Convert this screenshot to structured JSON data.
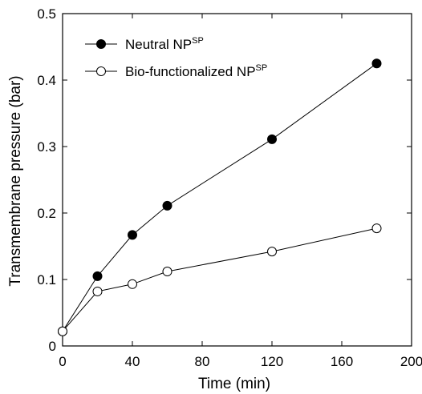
{
  "chart_data": {
    "type": "line",
    "xlabel": "Time (min)",
    "ylabel": "Transmembrane pressure (bar)",
    "xlim": [
      0,
      200
    ],
    "ylim": [
      0,
      0.5
    ],
    "xticks": [
      0,
      40,
      80,
      120,
      160,
      200
    ],
    "yticks": [
      0,
      0.1,
      0.2,
      0.3,
      0.4,
      0.5
    ],
    "xtick_labels": [
      "0",
      "40",
      "80",
      "120",
      "160",
      "200"
    ],
    "ytick_labels": [
      "0",
      "0.1",
      "0.2",
      "0.3",
      "0.4",
      "0.5"
    ],
    "grid": false,
    "legend_position": "top-left",
    "x": [
      0,
      20,
      40,
      60,
      120,
      180
    ],
    "series": [
      {
        "name": "Neutral NP",
        "name_sup": "SP",
        "marker": "filled-circle",
        "color": "#000000",
        "values": [
          0.022,
          0.105,
          0.167,
          0.211,
          0.311,
          0.425
        ]
      },
      {
        "name": "Bio-functionalized NP",
        "name_sup": "SP",
        "marker": "open-circle",
        "color": "#000000",
        "values": [
          0.022,
          0.082,
          0.093,
          0.112,
          0.142,
          0.177
        ]
      }
    ]
  }
}
